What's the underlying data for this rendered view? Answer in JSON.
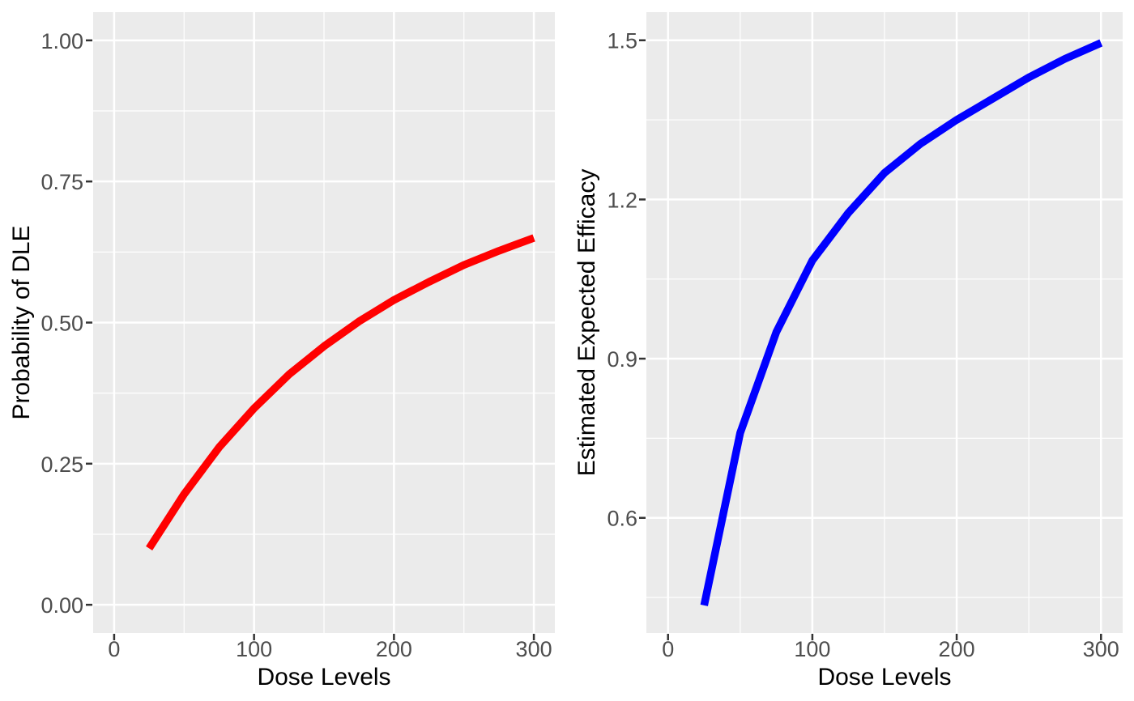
{
  "figure": {
    "background": "#FFFFFF",
    "panel_background": "#EBEBEB",
    "grid_color": "#FFFFFF",
    "tick_mark_color": "#333333",
    "tick_label_color": "#4D4D4D",
    "axis_title_color": "#000000"
  },
  "chart_data": [
    {
      "type": "line",
      "name": "dle-probability-curve",
      "title": "",
      "xlabel": "Dose Levels",
      "ylabel": "Probability of DLE",
      "line_color": "#FF0000",
      "x": [
        25,
        50,
        75,
        100,
        125,
        150,
        175,
        200,
        225,
        250,
        275,
        300
      ],
      "y": [
        0.1,
        0.196,
        0.279,
        0.348,
        0.408,
        0.458,
        0.502,
        0.54,
        0.572,
        0.602,
        0.627,
        0.65
      ],
      "xlim": [
        -15,
        315
      ],
      "ylim": [
        -0.05,
        1.05
      ],
      "xticks": {
        "values": [
          0,
          100,
          200,
          300
        ],
        "labels": [
          "0",
          "100",
          "200",
          "300"
        ]
      },
      "yticks": {
        "values": [
          0.0,
          0.25,
          0.5,
          0.75,
          1.0
        ],
        "labels": [
          "0.00",
          "0.25",
          "0.50",
          "0.75",
          "1.00"
        ]
      },
      "xminor": [
        50,
        150,
        250
      ],
      "yminor": [
        0.125,
        0.375,
        0.625,
        0.875
      ],
      "grid": true,
      "legend_position": "none"
    },
    {
      "type": "line",
      "name": "estimated-efficacy-curve",
      "title": "",
      "xlabel": "Dose Levels",
      "ylabel": "Estimated Expected Efficacy",
      "line_color": "#0000FF",
      "x": [
        25,
        50,
        75,
        100,
        125,
        150,
        175,
        200,
        225,
        250,
        275,
        300
      ],
      "y": [
        0.435,
        0.76,
        0.95,
        1.085,
        1.175,
        1.25,
        1.305,
        1.35,
        1.39,
        1.43,
        1.465,
        1.495
      ],
      "xlim": [
        -15,
        315
      ],
      "ylim": [
        0.383,
        1.553
      ],
      "xticks": {
        "values": [
          0,
          100,
          200,
          300
        ],
        "labels": [
          "0",
          "100",
          "200",
          "300"
        ]
      },
      "yticks": {
        "values": [
          0.6,
          0.9,
          1.2,
          1.5
        ],
        "labels": [
          "0.6",
          "0.9",
          "1.2",
          "1.5"
        ]
      },
      "xminor": [
        50,
        150,
        250
      ],
      "yminor": [
        0.45,
        0.75,
        1.05,
        1.35
      ],
      "grid": true,
      "legend_position": "none"
    }
  ]
}
